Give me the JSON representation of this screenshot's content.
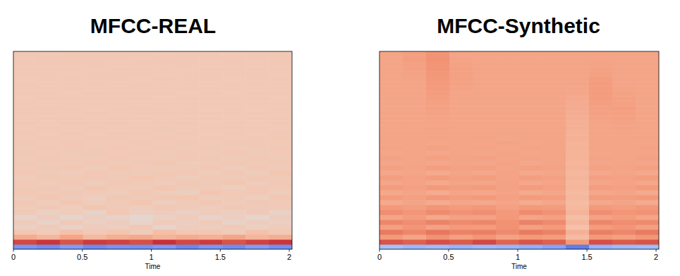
{
  "chart_data": [
    {
      "type": "heatmap",
      "title": "MFCC-REAL",
      "x_label": "Time",
      "xlim": [
        0,
        2.02
      ],
      "xticks": [
        0,
        0.5,
        1,
        1.5,
        2
      ],
      "tick_labels": "x",
      "color_range": [
        -300,
        300
      ],
      "cells": [
        [
          -190,
          -205,
          -180,
          -210,
          -195,
          -200,
          -185,
          -215,
          -190,
          -205,
          -180,
          -200
        ],
        [
          245,
          260,
          235,
          255,
          250,
          240,
          265,
          245,
          255,
          235,
          250,
          260
        ],
        [
          120,
          100,
          130,
          95,
          115,
          125,
          105,
          120,
          110,
          130,
          100,
          115
        ],
        [
          70,
          55,
          80,
          60,
          75,
          50,
          85,
          65,
          70,
          55,
          80,
          60
        ],
        [
          40,
          60,
          35,
          55,
          45,
          65,
          30,
          50,
          45,
          60,
          40,
          55
        ],
        [
          55,
          35,
          60,
          40,
          50,
          30,
          55,
          45,
          60,
          35,
          50,
          40
        ],
        [
          30,
          50,
          25,
          45,
          35,
          20,
          40,
          55,
          30,
          45,
          25,
          50
        ],
        [
          60,
          40,
          55,
          35,
          65,
          45,
          50,
          40,
          55,
          45,
          60,
          35
        ],
        [
          55,
          62,
          48,
          70,
          58,
          52,
          66,
          60,
          50,
          64,
          57,
          61
        ],
        [
          63,
          50,
          67,
          55,
          60,
          71,
          49,
          58,
          65,
          53,
          62,
          56
        ],
        [
          52,
          68,
          58,
          47,
          64,
          56,
          62,
          70,
          54,
          59,
          48,
          66
        ],
        [
          66,
          57,
          62,
          60,
          51,
          65,
          55,
          49,
          68,
          61,
          63,
          52
        ],
        [
          58,
          63,
          50,
          67,
          61,
          54,
          69,
          57,
          60,
          48,
          65,
          59
        ],
        [
          61,
          55,
          66,
          52,
          63,
          60,
          53,
          64,
          57,
          67,
          54,
          62
        ],
        [
          54,
          64,
          59,
          62,
          56,
          68,
          61,
          52,
          63,
          58,
          66,
          57
        ],
        [
          65,
          58,
          53,
          66,
          60,
          57,
          64,
          62,
          55,
          63,
          51,
          68
        ],
        [
          59,
          62,
          64,
          55,
          67,
          61,
          56,
          60,
          66,
          54,
          62,
          58
        ],
        [
          62,
          57,
          60,
          65,
          58,
          63,
          67,
          55,
          59,
          64,
          60,
          63
        ],
        [
          57,
          65,
          61,
          58,
          63,
          59,
          60,
          66,
          62,
          57,
          64,
          60
        ],
        [
          64,
          60,
          56,
          63,
          61,
          66,
          58,
          62,
          57,
          65,
          59,
          61
        ],
        [
          60,
          63,
          62,
          59,
          65,
          58,
          63,
          60,
          64,
          61,
          58,
          65
        ],
        [
          63,
          59,
          65,
          61,
          60,
          64,
          61,
          63,
          59,
          62,
          66,
          60
        ],
        [
          61,
          64,
          60,
          63,
          62,
          61,
          65,
          59,
          63,
          60,
          62,
          64
        ],
        [
          62,
          61,
          63,
          60,
          64,
          62,
          60,
          64,
          61,
          63,
          61,
          62
        ],
        [
          60,
          63,
          61,
          64,
          61,
          63,
          62,
          61,
          64,
          62,
          63,
          60
        ],
        [
          63,
          61,
          62,
          62,
          63,
          61,
          64,
          62,
          60,
          64,
          61,
          63
        ],
        [
          61,
          62,
          64,
          61,
          62,
          64,
          61,
          63,
          62,
          61,
          64,
          62
        ],
        [
          62,
          64,
          61,
          63,
          61,
          62,
          63,
          62,
          63,
          62,
          62,
          61
        ],
        [
          64,
          62,
          62,
          61,
          63,
          63,
          62,
          64,
          61,
          63,
          61,
          63
        ],
        [
          62,
          61,
          63,
          64,
          62,
          61,
          64,
          62,
          63,
          62,
          64,
          62
        ],
        [
          61,
          63,
          62,
          62,
          64,
          62,
          61,
          63,
          62,
          64,
          62,
          61
        ],
        [
          63,
          62,
          61,
          63,
          62,
          64,
          63,
          61,
          64,
          61,
          63,
          62
        ],
        [
          62,
          64,
          63,
          61,
          63,
          62,
          62,
          64,
          62,
          63,
          61,
          64
        ],
        [
          64,
          61,
          62,
          64,
          61,
          63,
          64,
          62,
          61,
          62,
          64,
          63
        ],
        [
          61,
          63,
          64,
          62,
          62,
          61,
          63,
          63,
          64,
          61,
          62,
          62
        ],
        [
          63,
          62,
          61,
          63,
          64,
          62,
          61,
          62,
          63,
          64,
          63,
          61
        ],
        [
          62,
          63,
          62,
          61,
          63,
          64,
          62,
          61,
          62,
          63,
          62,
          64
        ],
        [
          64,
          62,
          63,
          62,
          61,
          63,
          64,
          63,
          61,
          62,
          61,
          63
        ],
        [
          61,
          64,
          62,
          63,
          62,
          61,
          63,
          62,
          64,
          63,
          62,
          62
        ],
        [
          63,
          61,
          64,
          62,
          63,
          62,
          61,
          64,
          62,
          61,
          63,
          64
        ]
      ]
    },
    {
      "type": "heatmap",
      "title": "MFCC-Synthetic",
      "x_label": "Time",
      "xlim": [
        0,
        2.02
      ],
      "xticks": [
        0,
        0.5,
        1,
        1.5,
        2
      ],
      "tick_labels": "x",
      "color_range": [
        -300,
        300
      ],
      "cells": [
        [
          -110,
          -130,
          -120,
          -140,
          -125,
          -135,
          -150,
          -170,
          -230,
          -140,
          -125,
          -120
        ],
        [
          235,
          225,
          240,
          230,
          245,
          220,
          235,
          225,
          150,
          240,
          230,
          235
        ],
        [
          150,
          130,
          160,
          140,
          155,
          135,
          150,
          145,
          90,
          150,
          140,
          155
        ],
        [
          190,
          175,
          195,
          180,
          185,
          170,
          190,
          180,
          110,
          185,
          175,
          190
        ],
        [
          140,
          155,
          135,
          150,
          145,
          160,
          140,
          150,
          80,
          145,
          155,
          140
        ],
        [
          175,
          165,
          180,
          170,
          175,
          160,
          180,
          170,
          100,
          175,
          165,
          170
        ],
        [
          130,
          145,
          125,
          140,
          135,
          150,
          130,
          140,
          85,
          135,
          145,
          130
        ],
        [
          165,
          155,
          170,
          160,
          165,
          150,
          170,
          160,
          105,
          165,
          155,
          160
        ],
        [
          150,
          142,
          155,
          148,
          152,
          140,
          150,
          146,
          95,
          150,
          144,
          152
        ],
        [
          122,
          130,
          118,
          128,
          124,
          132,
          120,
          126,
          90,
          124,
          130,
          120
        ],
        [
          148,
          140,
          152,
          145,
          150,
          138,
          148,
          144,
          98,
          146,
          142,
          150
        ],
        [
          125,
          132,
          120,
          130,
          126,
          134,
          122,
          128,
          92,
          126,
          132,
          122
        ],
        [
          145,
          138,
          150,
          142,
          148,
          136,
          146,
          140,
          100,
          144,
          138,
          148
        ],
        [
          128,
          134,
          124,
          132,
          128,
          136,
          126,
          130,
          96,
          128,
          134,
          126
        ],
        [
          142,
          136,
          146,
          140,
          144,
          134,
          142,
          138,
          102,
          140,
          136,
          144
        ],
        [
          126,
          132,
          122,
          130,
          126,
          134,
          124,
          128,
          98,
          126,
          132,
          124
        ],
        [
          138,
          134,
          142,
          136,
          140,
          132,
          138,
          134,
          104,
          136,
          134,
          140
        ],
        [
          128,
          132,
          126,
          130,
          128,
          134,
          126,
          130,
          100,
          128,
          132,
          128
        ],
        [
          135,
          131,
          138,
          133,
          136,
          130,
          134,
          132,
          106,
          134,
          131,
          136
        ],
        [
          129,
          132,
          127,
          131,
          129,
          133,
          128,
          131,
          104,
          129,
          132,
          130
        ],
        [
          133,
          130,
          136,
          132,
          134,
          129,
          133,
          131,
          108,
          132,
          130,
          134
        ],
        [
          130,
          132,
          129,
          131,
          130,
          133,
          129,
          131,
          106,
          130,
          132,
          131
        ],
        [
          132,
          130,
          134,
          131,
          133,
          129,
          132,
          130,
          110,
          131,
          130,
          133
        ],
        [
          130,
          131,
          131,
          130,
          131,
          132,
          130,
          131,
          108,
          130,
          131,
          131
        ],
        [
          131,
          130,
          133,
          131,
          132,
          130,
          131,
          130,
          112,
          131,
          133,
          132
        ],
        [
          130,
          131,
          132,
          130,
          130,
          131,
          130,
          131,
          112,
          132,
          134,
          130
        ],
        [
          131,
          130,
          134,
          131,
          131,
          130,
          131,
          130,
          114,
          135,
          138,
          131
        ],
        [
          130,
          131,
          136,
          130,
          130,
          131,
          130,
          130,
          116,
          138,
          140,
          130
        ],
        [
          131,
          130,
          138,
          131,
          131,
          130,
          131,
          130,
          118,
          140,
          142,
          131
        ],
        [
          130,
          131,
          140,
          130,
          130,
          131,
          130,
          131,
          120,
          143,
          140,
          130
        ],
        [
          131,
          130,
          142,
          131,
          130,
          130,
          131,
          130,
          124,
          145,
          138,
          131
        ],
        [
          130,
          131,
          145,
          132,
          130,
          131,
          130,
          131,
          126,
          146,
          136,
          130
        ],
        [
          131,
          130,
          148,
          134,
          131,
          130,
          131,
          130,
          128,
          147,
          134,
          131
        ],
        [
          130,
          132,
          150,
          136,
          130,
          131,
          130,
          131,
          130,
          146,
          132,
          130
        ],
        [
          131,
          134,
          152,
          138,
          131,
          130,
          131,
          130,
          131,
          144,
          131,
          131
        ],
        [
          130,
          136,
          154,
          140,
          130,
          131,
          130,
          131,
          130,
          140,
          130,
          130
        ],
        [
          131,
          138,
          156,
          138,
          131,
          130,
          131,
          130,
          131,
          136,
          131,
          131
        ],
        [
          130,
          140,
          158,
          136,
          130,
          131,
          130,
          131,
          130,
          134,
          130,
          130
        ],
        [
          131,
          142,
          160,
          134,
          131,
          130,
          131,
          130,
          131,
          132,
          131,
          131
        ],
        [
          130,
          140,
          158,
          132,
          130,
          131,
          130,
          131,
          130,
          131,
          130,
          130
        ]
      ]
    }
  ]
}
